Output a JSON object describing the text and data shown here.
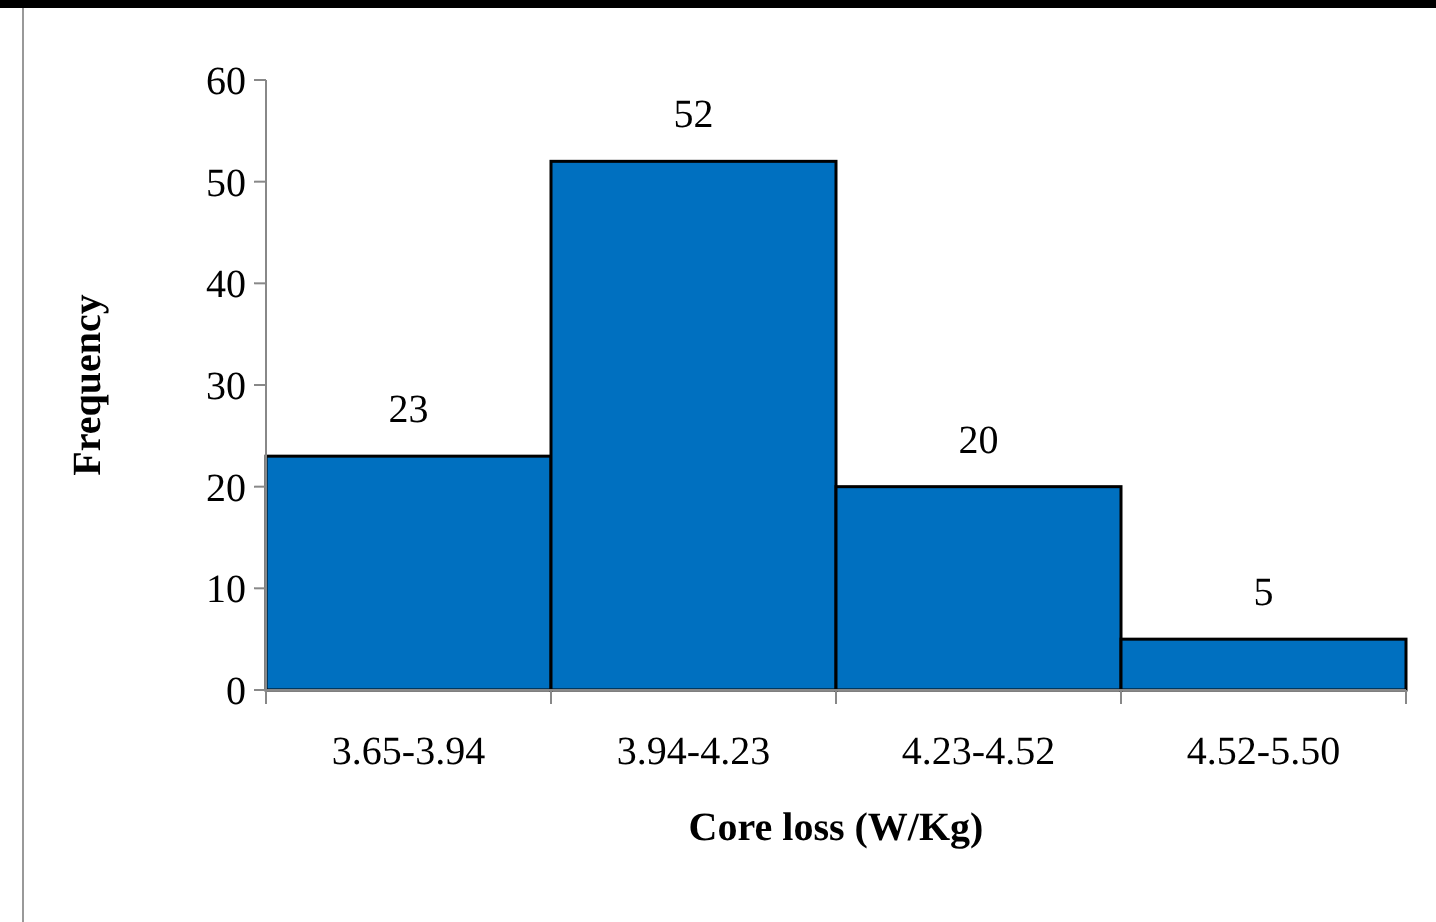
{
  "chart_data": {
    "type": "bar",
    "xlabel": "Core loss (W/Kg)",
    "ylabel": "Frequency",
    "categories": [
      "3.65-3.94",
      "3.94-4.23",
      "4.23-4.52",
      "4.52-5.50"
    ],
    "values": [
      23,
      52,
      20,
      5
    ],
    "color": "#0070c0",
    "ylim": [
      0,
      60
    ],
    "yticks": [
      0,
      10,
      20,
      30,
      40,
      50,
      60
    ],
    "data_labels": true,
    "grid": false
  }
}
